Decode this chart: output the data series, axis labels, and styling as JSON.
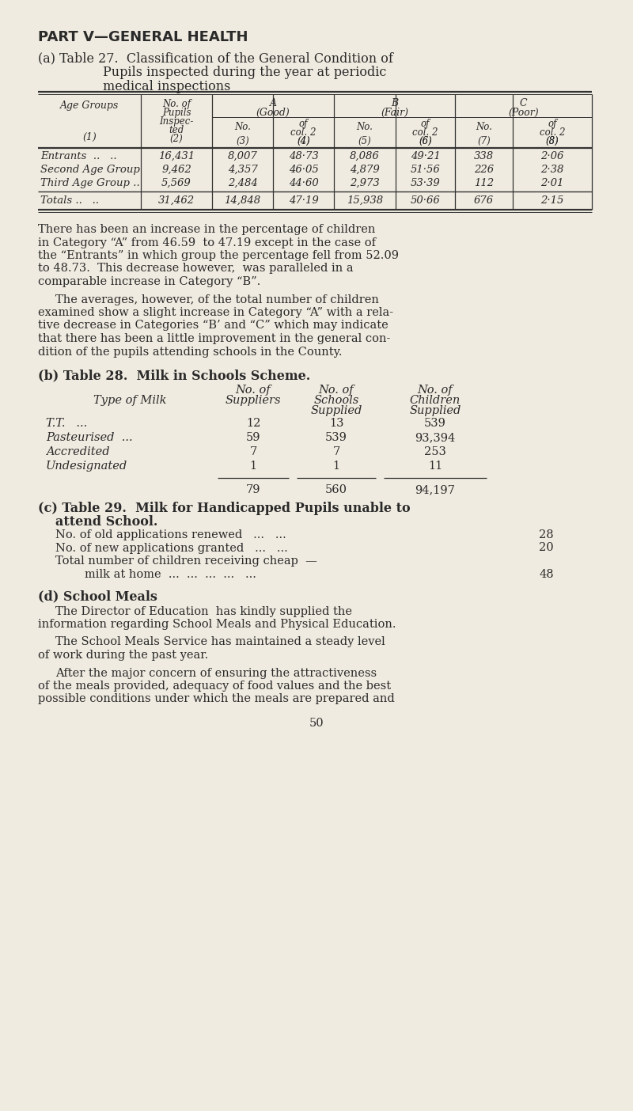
{
  "bg_color": "#f0ebe0",
  "text_color": "#2a2a2a",
  "title1": "PART V—GENERAL HEALTH",
  "subtitle_a1": "(a) Table 27.  Classification of the General Condition of",
  "subtitle_a2": "Pupils inspected during the year at periodic",
  "subtitle_a3": "medical inspections",
  "table27_rows": [
    [
      "Entrants  ..   ..",
      "16,431",
      "8,007",
      "48·73",
      "8,086",
      "49·21",
      "338",
      "2·06"
    ],
    [
      "Second Age Group",
      "9,462",
      "4,357",
      "46·05",
      "4,879",
      "51·56",
      "226",
      "2·38"
    ],
    [
      "Third Age Group ..",
      "5,569",
      "2,484",
      "44·60",
      "2,973",
      "53·39",
      "112",
      "2·01"
    ]
  ],
  "table27_totals": [
    "Totals ..   ..",
    "31,462",
    "14,848",
    "47·19",
    "15,938",
    "50·66",
    "676",
    "2·15"
  ],
  "p1_lines": [
    "There has been an increase in the percentage of children",
    "in Category “A” from 46.59  to 47.19 except in the case of",
    "the “Entrants” in which group the percentage fell from 52.09",
    "to 48.73.  This decrease however,  was paralleled in a",
    "comparable increase in Category “B”."
  ],
  "p2_lines": [
    "The averages, however, of the total number of children",
    "examined show a slight increase in Category “A” with a rela-",
    "tive decrease in Categories “B’ and “C” which may indicate",
    "that there has been a little improvement in the general con-",
    "dition of the pupils attending schools in the County."
  ],
  "subtitle_b": "(b) Table 28.  Milk in Schools Scheme.",
  "table28_rows": [
    [
      "T.T.   ...",
      "12",
      "13",
      "539"
    ],
    [
      "Pasteurised  ...",
      "59",
      "539",
      "93,394"
    ],
    [
      "Accredited",
      "7",
      "7",
      "253"
    ],
    [
      "Undesignated",
      "1",
      "1",
      "11"
    ]
  ],
  "table28_totals": [
    "",
    "79",
    "560",
    "94,197"
  ],
  "subtitle_c": "(c) Table 29.  Milk for Handicapped Pupils unable to",
  "subtitle_c2": "attend School.",
  "t29_rows": [
    [
      "No. of old applications renewed   ...   ...",
      "28"
    ],
    [
      "No. of new applications granted   ...   ...",
      "20"
    ],
    [
      "Total number of children receiving cheap  —",
      ""
    ],
    [
      "        milk at home  ...  ...  ...  ...   ...",
      "48"
    ]
  ],
  "subtitle_d": "(d) School Meals",
  "pd1_lines": [
    "The Director of Education  has kindly supplied the",
    "information regarding School Meals and Physical Education."
  ],
  "pd2_lines": [
    "The School Meals Service has maintained a steady level",
    "of work during the past year."
  ],
  "pd3_lines": [
    "After the major concern of ensuring the attractiveness",
    "of the meals provided, adequacy of food values and the best",
    "possible conditions under which the meals are prepared and"
  ],
  "page_num": "50"
}
